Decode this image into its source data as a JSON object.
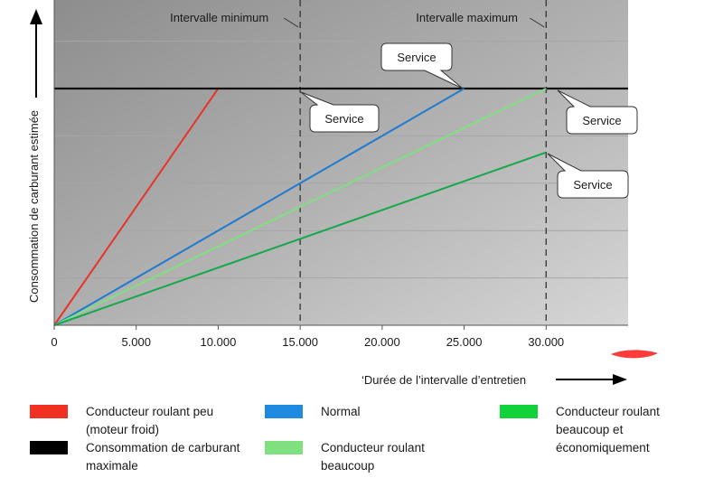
{
  "chart_data": {
    "type": "line",
    "xlabel": "‘Durée de l’intervalle d’entretien",
    "ylabel": "Consommation de carburant estimée",
    "xlim": [
      0,
      35000
    ],
    "ylim": [
      0,
      100
    ],
    "x_ticks": [
      "0",
      "5.000",
      "10.000",
      "15.000",
      "20.000",
      "25.000",
      "30.000"
    ],
    "x_tick_values": [
      0,
      5000,
      10000,
      15000,
      20000,
      25000,
      30000
    ],
    "grid": true,
    "series": [
      {
        "name": "Conducteur roulant peu\n(moteur froid)",
        "color": "#e8332a",
        "points": [
          [
            0,
            0
          ],
          [
            10000,
            100
          ]
        ]
      },
      {
        "name": "Consommation de carburant maximale",
        "color": "#111111",
        "points": [
          [
            0,
            100
          ],
          [
            35000,
            100
          ]
        ]
      },
      {
        "name": "Normal",
        "color": "#1e7bd0",
        "points": [
          [
            0,
            0
          ],
          [
            25000,
            100
          ]
        ]
      },
      {
        "name": "Conducteur roulant\nbeaucoup",
        "color": "#80e080",
        "points": [
          [
            0,
            0
          ],
          [
            30000,
            100
          ]
        ]
      },
      {
        "name": "Conducteur roulant\nbeaucoup et\néconomiquement",
        "color": "#15a84a",
        "points": [
          [
            0,
            0
          ],
          [
            30000,
            73
          ]
        ]
      }
    ],
    "vertical_lines": [
      {
        "x": 15000,
        "label": "Intervalle minimum"
      },
      {
        "x": 30000,
        "label": "Intervalle maximum"
      }
    ],
    "annotations": [
      {
        "text": "Service",
        "at": [
          15000,
          100
        ]
      },
      {
        "text": "Service",
        "at": [
          25000,
          100
        ]
      },
      {
        "text": "Service",
        "at": [
          30000,
          100
        ]
      },
      {
        "text": "Service",
        "at": [
          30000,
          73
        ]
      }
    ]
  },
  "legend_swatch_colors": {
    "red": "#f03020",
    "black": "#000000",
    "blue": "#1e8ae0",
    "light_green": "#7fe07f",
    "green": "#12d23a"
  }
}
